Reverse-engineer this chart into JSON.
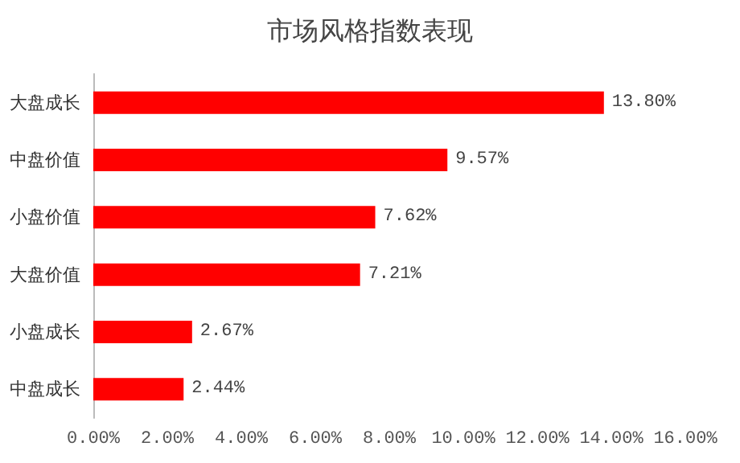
{
  "chart_data": {
    "type": "bar",
    "orientation": "horizontal",
    "title": "市场风格指数表现",
    "categories": [
      "大盘成长",
      "中盘价值",
      "小盘价值",
      "大盘价值",
      "小盘成长",
      "中盘成长"
    ],
    "values": [
      13.8,
      9.57,
      7.62,
      7.21,
      2.67,
      2.44
    ],
    "value_labels": [
      "13.80%",
      "9.57%",
      "7.62%",
      "7.21%",
      "2.67%",
      "2.44%"
    ],
    "color": "#ff0000",
    "xlim": [
      0,
      16
    ],
    "xticks": [
      {
        "value": 0,
        "label": "0.00%"
      },
      {
        "value": 2,
        "label": "2.00%"
      },
      {
        "value": 4,
        "label": "4.00%"
      },
      {
        "value": 6,
        "label": "6.00%"
      },
      {
        "value": 8,
        "label": "8.00%"
      },
      {
        "value": 10,
        "label": "10.00%"
      },
      {
        "value": 12,
        "label": "12.00%"
      },
      {
        "value": 14,
        "label": "14.00%"
      },
      {
        "value": 16,
        "label": "16.00%"
      }
    ],
    "grid": false
  }
}
